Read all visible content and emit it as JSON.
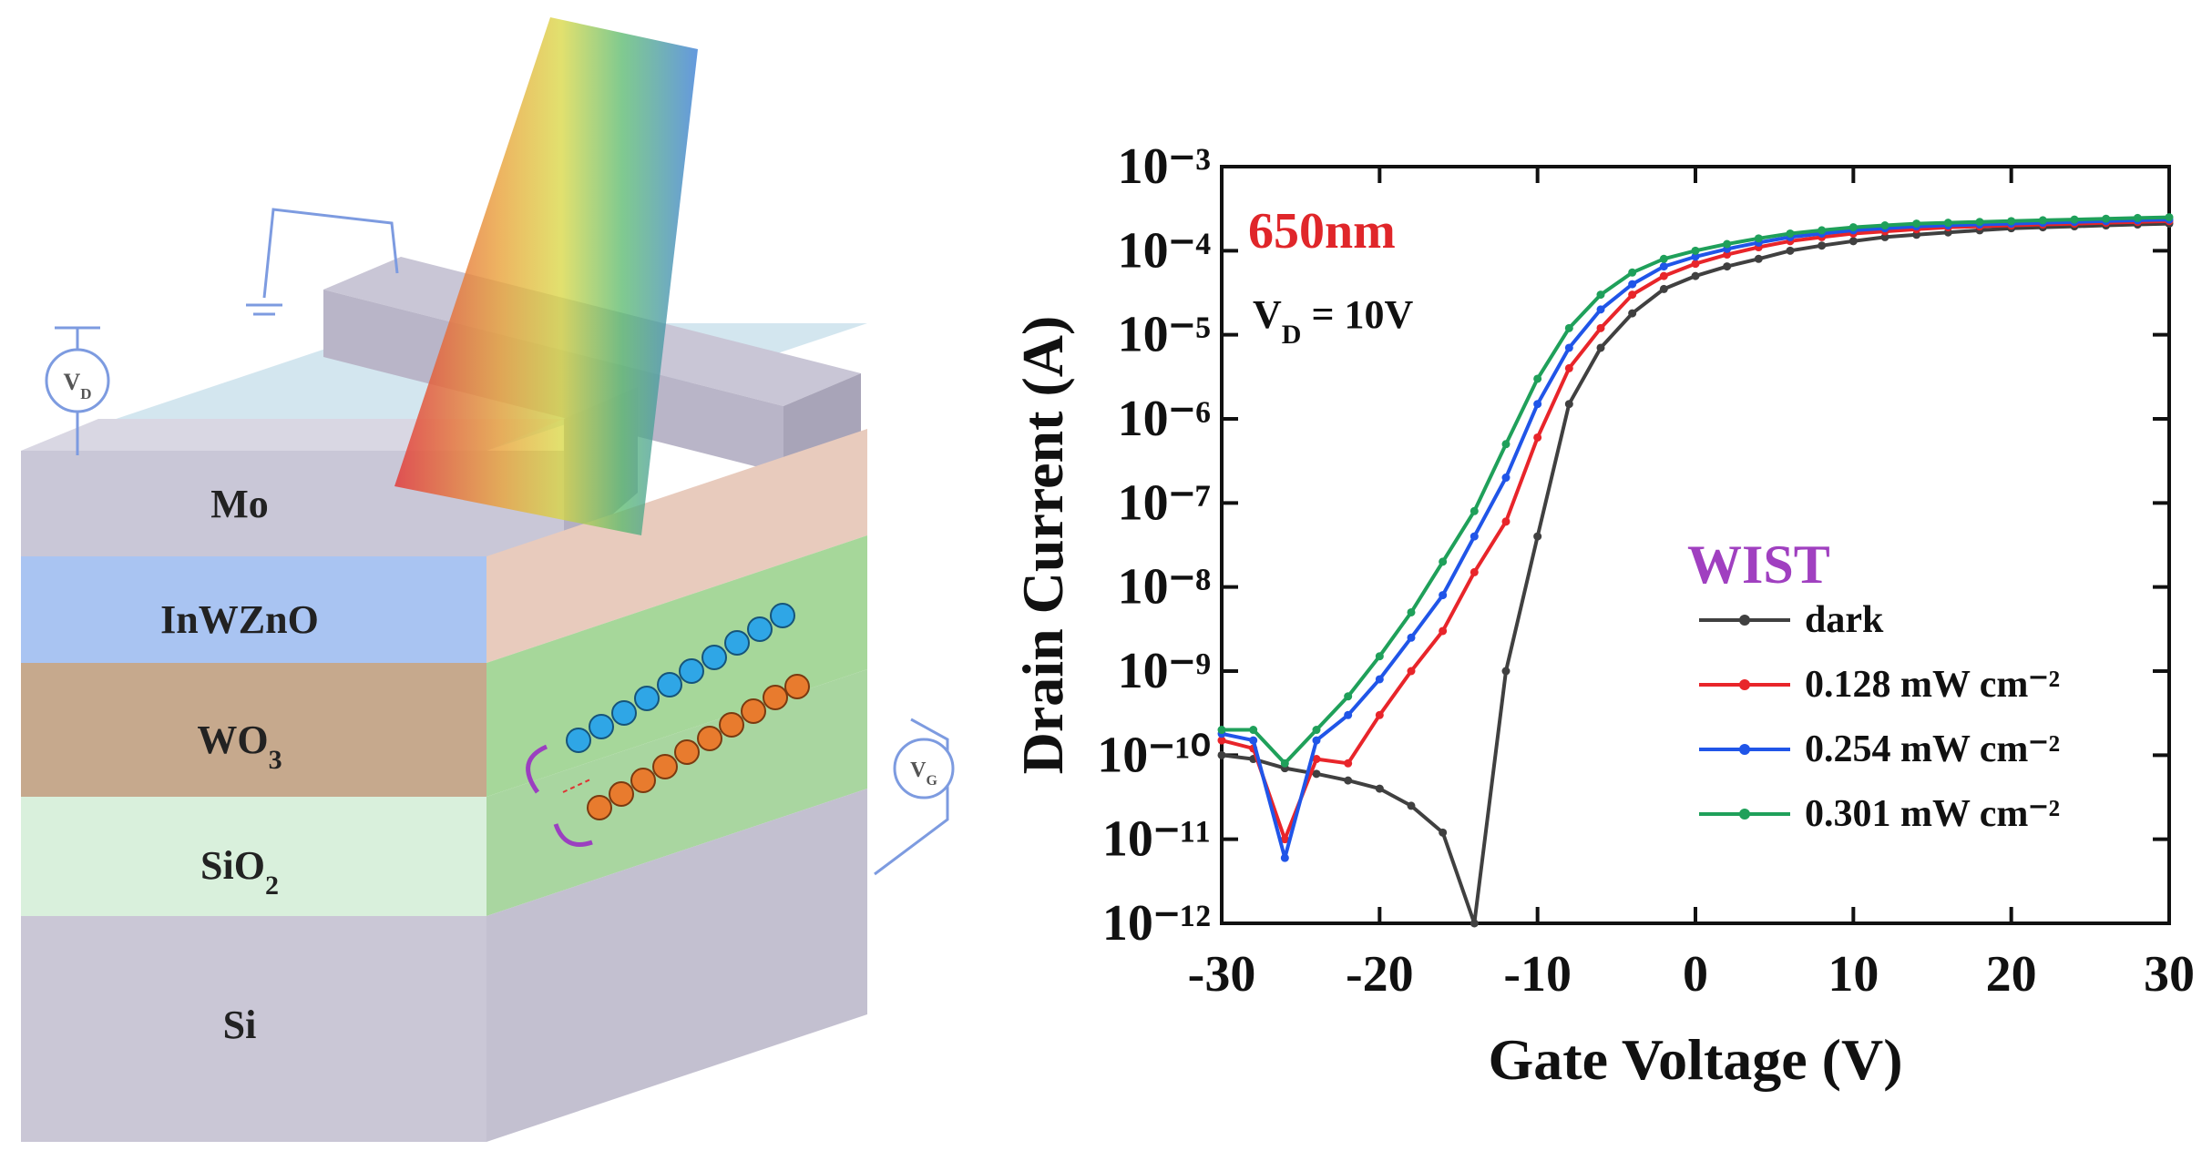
{
  "diagram": {
    "layers": [
      {
        "text": "Mo"
      },
      {
        "text": "InWZnO"
      },
      {
        "text": "WO",
        "sub": "3"
      },
      {
        "text": "SiO",
        "sub": "2"
      },
      {
        "text": "Si"
      }
    ],
    "drain_source": {
      "text": "V",
      "sub": "D"
    },
    "gate_source": {
      "text": "V",
      "sub": "G"
    }
  },
  "chart_data": {
    "type": "line",
    "yscale": "log",
    "x_label": "Gate Voltage (V)",
    "y_label": "Drain Current (A)",
    "annotations": [
      {
        "text": "650nm",
        "color": "#e0262a"
      },
      {
        "text": "V",
        "sub": "D",
        "rest": " = 10V",
        "color": "#111111"
      }
    ],
    "legend_title": "WIST",
    "legend_title_color": "#a040c0",
    "legend": "lower right",
    "xlim": [
      -30,
      30
    ],
    "xticks": [
      -30,
      -20,
      -10,
      0,
      10,
      20,
      30
    ],
    "ylim": [
      1e-12,
      0.001
    ],
    "yticks": [
      {
        "value": 1e-12,
        "label": "10⁻¹²"
      },
      {
        "value": 1e-11,
        "label": "10⁻¹¹"
      },
      {
        "value": 1e-10,
        "label": "10⁻¹⁰"
      },
      {
        "value": 1e-09,
        "label": "10⁻⁹"
      },
      {
        "value": 1e-08,
        "label": "10⁻⁸"
      },
      {
        "value": 1e-07,
        "label": "10⁻⁷"
      },
      {
        "value": 1e-06,
        "label": "10⁻⁶"
      },
      {
        "value": 1e-05,
        "label": "10⁻⁵"
      },
      {
        "value": 0.0001,
        "label": "10⁻⁴"
      },
      {
        "value": 0.001,
        "label": "10⁻³"
      }
    ],
    "x": [
      -30,
      -28,
      -26,
      -24,
      -22,
      -20,
      -18,
      -16,
      -14,
      -12,
      -10,
      -8,
      -6,
      -4,
      -2,
      0,
      2,
      4,
      6,
      8,
      10,
      12,
      14,
      16,
      18,
      20,
      22,
      24,
      26,
      28,
      30
    ],
    "series": [
      {
        "name": "dark",
        "color": "#404040",
        "values": [
          1e-10,
          9e-11,
          7e-11,
          6e-11,
          5e-11,
          4e-11,
          2.5e-11,
          1.2e-11,
          1e-12,
          1e-09,
          4e-08,
          1.5e-06,
          7e-06,
          1.8e-05,
          3.5e-05,
          5e-05,
          6.5e-05,
          8e-05,
          0.0001,
          0.000115,
          0.00013,
          0.000145,
          0.000155,
          0.000165,
          0.000175,
          0.000185,
          0.00019,
          0.000195,
          0.0002,
          0.000205,
          0.00021
        ]
      },
      {
        "name": "0.128 mW cm⁻²",
        "color": "#e8252a",
        "values": [
          1.5e-10,
          1.2e-10,
          1e-11,
          9e-11,
          8e-11,
          3e-10,
          1e-09,
          3e-09,
          1.5e-08,
          6e-08,
          6e-07,
          4e-06,
          1.2e-05,
          3e-05,
          5e-05,
          7e-05,
          9e-05,
          0.00011,
          0.00013,
          0.000145,
          0.00016,
          0.00017,
          0.00018,
          0.00019,
          0.000195,
          0.0002,
          0.000205,
          0.00021,
          0.000215,
          0.00022,
          0.000225
        ]
      },
      {
        "name": "0.254 mW cm⁻²",
        "color": "#2055e8",
        "values": [
          1.8e-10,
          1.5e-10,
          6e-12,
          1.5e-10,
          3e-10,
          8e-10,
          2.5e-09,
          8e-09,
          4e-08,
          2e-07,
          1.5e-06,
          7e-06,
          2e-05,
          4e-05,
          6.5e-05,
          8.5e-05,
          0.000105,
          0.000125,
          0.000145,
          0.00016,
          0.000175,
          0.000185,
          0.000195,
          0.0002,
          0.000205,
          0.00021,
          0.000215,
          0.00022,
          0.000225,
          0.00023,
          0.000235
        ]
      },
      {
        "name": "0.301 mW cm⁻²",
        "color": "#1fa05a",
        "values": [
          2e-10,
          2e-10,
          8e-11,
          2e-10,
          5e-10,
          1.5e-09,
          5e-09,
          2e-08,
          8e-08,
          5e-07,
          3e-06,
          1.2e-05,
          3e-05,
          5.5e-05,
          8e-05,
          0.0001,
          0.00012,
          0.00014,
          0.00016,
          0.000175,
          0.00019,
          0.0002,
          0.00021,
          0.000215,
          0.00022,
          0.000225,
          0.00023,
          0.000235,
          0.00024,
          0.000245,
          0.00025
        ]
      }
    ]
  }
}
